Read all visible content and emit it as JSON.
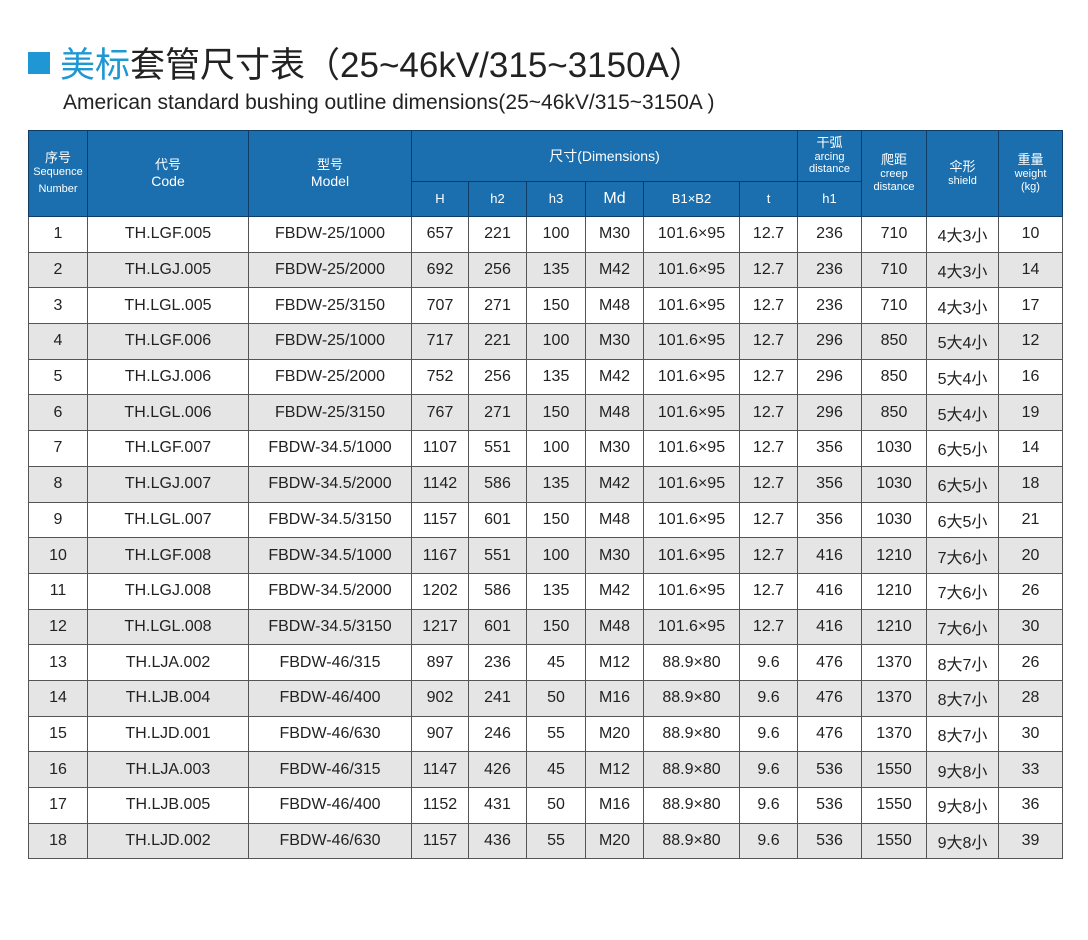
{
  "title": {
    "highlight": "美标",
    "rest": "套管尺寸表（25~46kV/315~3150A）"
  },
  "subtitle": "American standard bushing outline dimensions(25~46kV/315~3150A )",
  "colors": {
    "header_bg": "#1b6fae",
    "title_accent": "#1f97d4",
    "stripe": "#e5e5e5"
  },
  "headers": {
    "seq_zh": "序号",
    "seq_en1": "Sequence",
    "seq_en2": "Number",
    "code_zh": "代号",
    "code_en": "Code",
    "model_zh": "型号",
    "model_en": "Model",
    "dimensions": "尺寸(Dimensions)",
    "arc_zh": "干弧",
    "arc_en1": "arcing",
    "arc_en2": "distance",
    "creep_zh": "爬距",
    "creep_en1": "creep",
    "creep_en2": "distance",
    "shield_zh": "伞形",
    "shield_en": "shield",
    "weight_zh": "重量",
    "weight_en": "weight",
    "weight_unit": "(kg)",
    "sub": [
      "H",
      "h2",
      "h3",
      "Md",
      "B1×B2",
      "t",
      "h1"
    ]
  },
  "rows": [
    [
      "1",
      "TH.LGF.005",
      "FBDW-25/1000",
      "657",
      "221",
      "100",
      "M30",
      "101.6×95",
      "12.7",
      "236",
      "710",
      "4大3小",
      "10"
    ],
    [
      "2",
      "TH.LGJ.005",
      "FBDW-25/2000",
      "692",
      "256",
      "135",
      "M42",
      "101.6×95",
      "12.7",
      "236",
      "710",
      "4大3小",
      "14"
    ],
    [
      "3",
      "TH.LGL.005",
      "FBDW-25/3150",
      "707",
      "271",
      "150",
      "M48",
      "101.6×95",
      "12.7",
      "236",
      "710",
      "4大3小",
      "17"
    ],
    [
      "4",
      "TH.LGF.006",
      "FBDW-25/1000",
      "717",
      "221",
      "100",
      "M30",
      "101.6×95",
      "12.7",
      "296",
      "850",
      "5大4小",
      "12"
    ],
    [
      "5",
      "TH.LGJ.006",
      "FBDW-25/2000",
      "752",
      "256",
      "135",
      "M42",
      "101.6×95",
      "12.7",
      "296",
      "850",
      "5大4小",
      "16"
    ],
    [
      "6",
      "TH.LGL.006",
      "FBDW-25/3150",
      "767",
      "271",
      "150",
      "M48",
      "101.6×95",
      "12.7",
      "296",
      "850",
      "5大4小",
      "19"
    ],
    [
      "7",
      "TH.LGF.007",
      "FBDW-34.5/1000",
      "1107",
      "551",
      "100",
      "M30",
      "101.6×95",
      "12.7",
      "356",
      "1030",
      "6大5小",
      "14"
    ],
    [
      "8",
      "TH.LGJ.007",
      "FBDW-34.5/2000",
      "1142",
      "586",
      "135",
      "M42",
      "101.6×95",
      "12.7",
      "356",
      "1030",
      "6大5小",
      "18"
    ],
    [
      "9",
      "TH.LGL.007",
      "FBDW-34.5/3150",
      "1157",
      "601",
      "150",
      "M48",
      "101.6×95",
      "12.7",
      "356",
      "1030",
      "6大5小",
      "21"
    ],
    [
      "10",
      "TH.LGF.008",
      "FBDW-34.5/1000",
      "1167",
      "551",
      "100",
      "M30",
      "101.6×95",
      "12.7",
      "416",
      "1210",
      "7大6小",
      "20"
    ],
    [
      "11",
      "TH.LGJ.008",
      "FBDW-34.5/2000",
      "1202",
      "586",
      "135",
      "M42",
      "101.6×95",
      "12.7",
      "416",
      "1210",
      "7大6小",
      "26"
    ],
    [
      "12",
      "TH.LGL.008",
      "FBDW-34.5/3150",
      "1217",
      "601",
      "150",
      "M48",
      "101.6×95",
      "12.7",
      "416",
      "1210",
      "7大6小",
      "30"
    ],
    [
      "13",
      "TH.LJA.002",
      "FBDW-46/315",
      "897",
      "236",
      "45",
      "M12",
      "88.9×80",
      "9.6",
      "476",
      "1370",
      "8大7小",
      "26"
    ],
    [
      "14",
      "TH.LJB.004",
      "FBDW-46/400",
      "902",
      "241",
      "50",
      "M16",
      "88.9×80",
      "9.6",
      "476",
      "1370",
      "8大7小",
      "28"
    ],
    [
      "15",
      "TH.LJD.001",
      "FBDW-46/630",
      "907",
      "246",
      "55",
      "M20",
      "88.9×80",
      "9.6",
      "476",
      "1370",
      "8大7小",
      "30"
    ],
    [
      "16",
      "TH.LJA.003",
      "FBDW-46/315",
      "1147",
      "426",
      "45",
      "M12",
      "88.9×80",
      "9.6",
      "536",
      "1550",
      "9大8小",
      "33"
    ],
    [
      "17",
      "TH.LJB.005",
      "FBDW-46/400",
      "1152",
      "431",
      "50",
      "M16",
      "88.9×80",
      "9.6",
      "536",
      "1550",
      "9大8小",
      "36"
    ],
    [
      "18",
      "TH.LJD.002",
      "FBDW-46/630",
      "1157",
      "436",
      "55",
      "M20",
      "88.9×80",
      "9.6",
      "536",
      "1550",
      "9大8小",
      "39"
    ]
  ]
}
